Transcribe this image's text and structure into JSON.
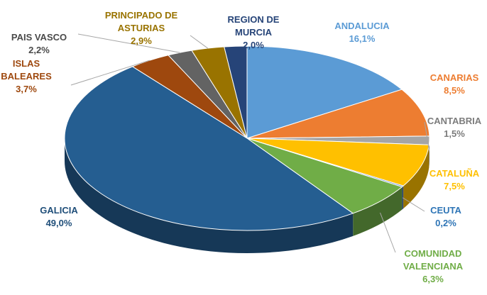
{
  "chart_data": {
    "type": "pie",
    "categories": [
      "ANDALUCIA",
      "CANARIAS",
      "CANTABRIA",
      "CATALUÑA",
      "CEUTA",
      "COMUNIDAD VALENCIANA",
      "GALICIA",
      "ISLAS BALEARES",
      "PAIS VASCO",
      "PRINCIPADO DE ASTURIAS",
      "REGION DE MURCIA"
    ],
    "values": [
      16.1,
      8.5,
      1.5,
      7.5,
      0.2,
      6.3,
      49.0,
      3.7,
      2.2,
      2.9,
      2.0
    ],
    "value_labels": [
      "16,1%",
      "8,5%",
      "1,5%",
      "7,5%",
      "0,2%",
      "6,3%",
      "49,0%",
      "3,7%",
      "2,2%",
      "2,9%",
      "2,0%"
    ],
    "colors": [
      "#5b9bd5",
      "#ed7d31",
      "#a5a5a5",
      "#ffc000",
      "#4472c4",
      "#70ad47",
      "#255e91",
      "#9e480e",
      "#636363",
      "#997300",
      "#264478"
    ]
  }
}
